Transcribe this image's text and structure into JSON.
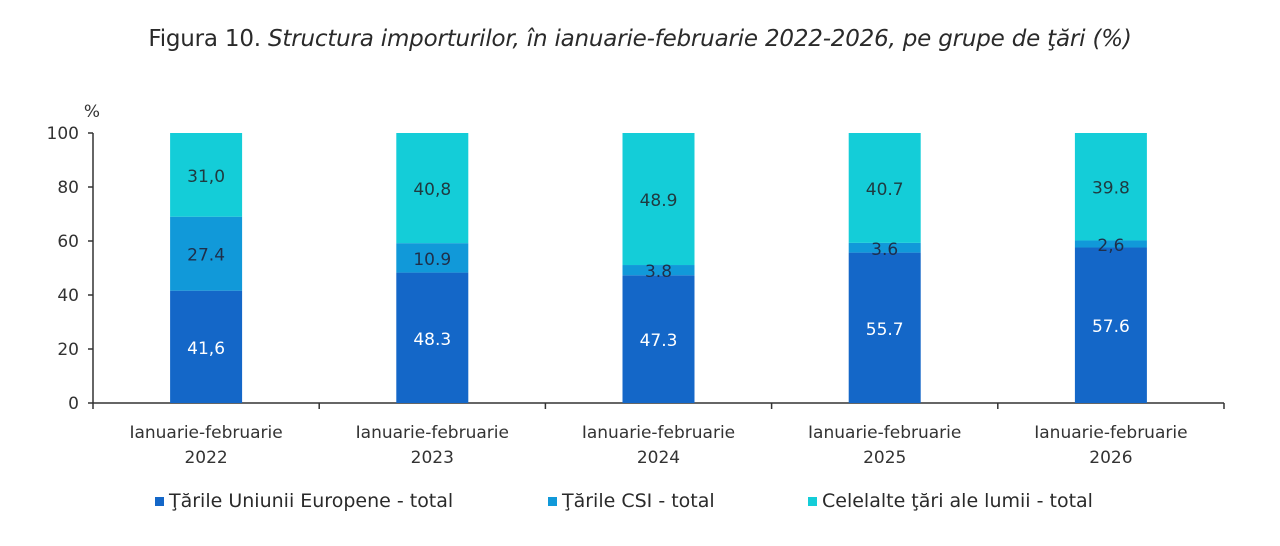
{
  "figure": {
    "title_prefix": "Figura 10.",
    "title_italic": "Structura importurilor, în ianuarie-februarie 2022-2026, pe grupe de ţări (%)"
  },
  "chart_data": {
    "type": "bar",
    "stacked": true,
    "title": "Figura 10. Structura importurilor, în ianuarie-februarie 2022-2026, pe grupe de ţări (%)",
    "xlabel": "",
    "ylabel": "%",
    "ylim": [
      0,
      100
    ],
    "yticks": [
      0,
      20,
      40,
      60,
      80,
      100
    ],
    "grid": false,
    "legend_position": "bottom",
    "categories": [
      [
        "Ianuarie-februarie",
        "2022"
      ],
      [
        "Ianuarie-februarie",
        "2023"
      ],
      [
        "Ianuarie-februarie",
        "2024"
      ],
      [
        "Ianuarie-februarie",
        "2025"
      ],
      [
        "Ianuarie-februarie",
        "2026"
      ]
    ],
    "series": [
      {
        "name": "Ţările Uniunii Europene - total",
        "color": "#1467c8",
        "label_color": "#ffffff",
        "values": [
          41.6,
          48.3,
          47.3,
          55.7,
          57.6
        ],
        "labels": [
          "41,6",
          "48.3",
          "47.3",
          "55.7",
          "57.6"
        ]
      },
      {
        "name": "Ţările CSI - total",
        "color": "#1199d9",
        "label_color": "#1f2f4a",
        "values": [
          27.4,
          10.9,
          3.8,
          3.6,
          2.6
        ],
        "labels": [
          "27.4",
          "10.9",
          "3.8",
          "3.6",
          "2,6"
        ]
      },
      {
        "name": "Celelalte ţări ale lumii - total",
        "color": "#14cdd8",
        "label_color": "#1f3a40",
        "values": [
          31.0,
          40.8,
          48.9,
          40.7,
          39.8
        ],
        "labels": [
          "31,0",
          "40,8",
          "48.9",
          "40.7",
          "39.8"
        ]
      }
    ]
  }
}
